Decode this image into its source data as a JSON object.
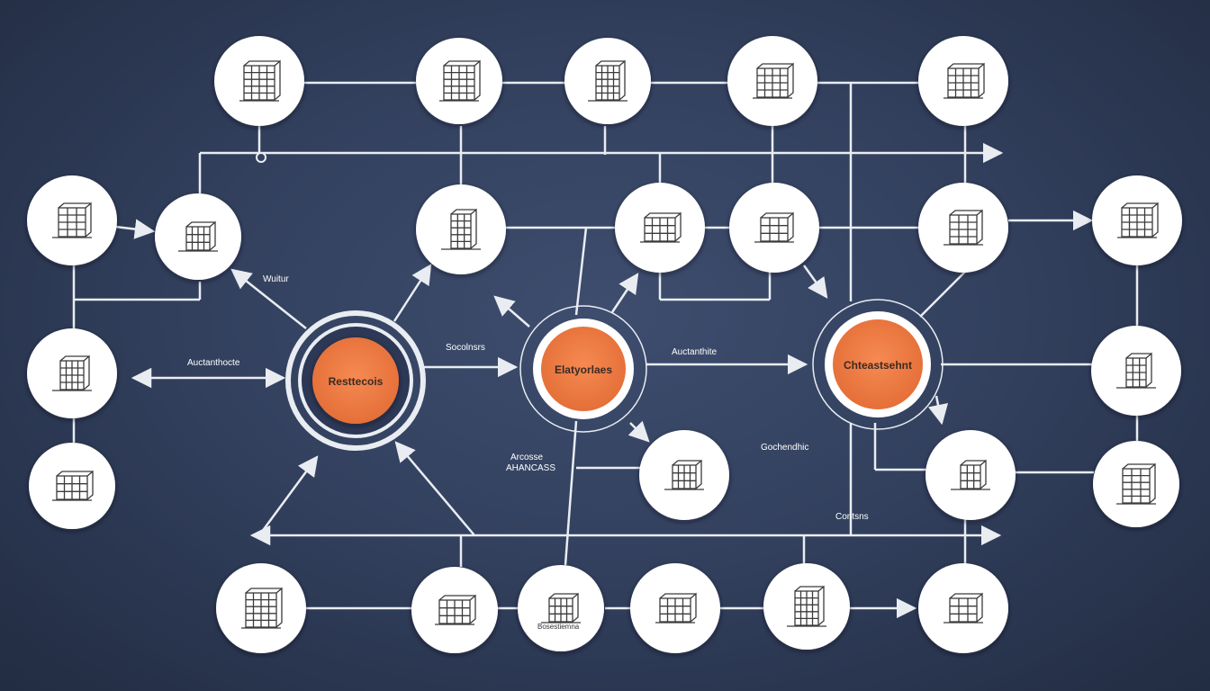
{
  "colors": {
    "background": "#33415f",
    "line": "#e9edf2",
    "node_fill": "#ffffff",
    "hub_fill": "#ef7f47",
    "icon_stroke": "#3b3b3b"
  },
  "hubs": [
    {
      "id": "hub-1",
      "label": "Resttecois"
    },
    {
      "id": "hub-2",
      "label": "Elatyorlaes"
    },
    {
      "id": "hub-3",
      "label": "Chteastsehnt"
    }
  ],
  "labels": {
    "wuitur": "Wuitur",
    "auctanthocte": "Auctanthocte",
    "socolnsrs": "Socolnsrs",
    "auctanthite": "Auctanthite",
    "arcosse": "Arcosse",
    "ahancass": "AHANCASS",
    "gochendhic": "Gochendhic",
    "contsns": "Contsns",
    "bottom_caption": "Bosestiemna"
  },
  "nodes": [
    {
      "id": "n-top-1",
      "icon": "building-sketch-icon"
    },
    {
      "id": "n-top-2",
      "icon": "tower-icon"
    },
    {
      "id": "n-top-3",
      "icon": "blueprint-icon"
    },
    {
      "id": "n-top-4",
      "icon": "city-block-icon"
    },
    {
      "id": "n-top-5",
      "icon": "framed-house-icon"
    },
    {
      "id": "n-left-1",
      "icon": "cube-building-icon"
    },
    {
      "id": "n-left-2",
      "icon": "office-building-icon"
    },
    {
      "id": "n-left-3",
      "icon": "facade-icon"
    },
    {
      "id": "n-left-4",
      "icon": "storefront-icon"
    },
    {
      "id": "n-mid-1",
      "icon": "round-tower-icon"
    },
    {
      "id": "n-mid-2",
      "icon": "skyscraper-icon"
    },
    {
      "id": "n-mid-3",
      "icon": "office-tower-icon"
    },
    {
      "id": "n-mid-4",
      "icon": "apartment-block-icon"
    },
    {
      "id": "n-right-1",
      "icon": "angled-tower-icon"
    },
    {
      "id": "n-right-2",
      "icon": "tall-block-icon"
    },
    {
      "id": "n-right-3",
      "icon": "wireframe-house-icon"
    },
    {
      "id": "n-right-4",
      "icon": "house-icon"
    },
    {
      "id": "n-center-1",
      "icon": "book-building-icon"
    },
    {
      "id": "n-bot-1",
      "icon": "crate-building-icon"
    },
    {
      "id": "n-bot-2",
      "icon": "open-book-icon"
    },
    {
      "id": "n-bot-3",
      "icon": "drafting-compass-icon"
    },
    {
      "id": "n-bot-4",
      "icon": "campus-icon"
    },
    {
      "id": "n-bot-5",
      "icon": "highrise-icon"
    },
    {
      "id": "n-bot-6",
      "icon": "grid-tower-icon"
    }
  ]
}
